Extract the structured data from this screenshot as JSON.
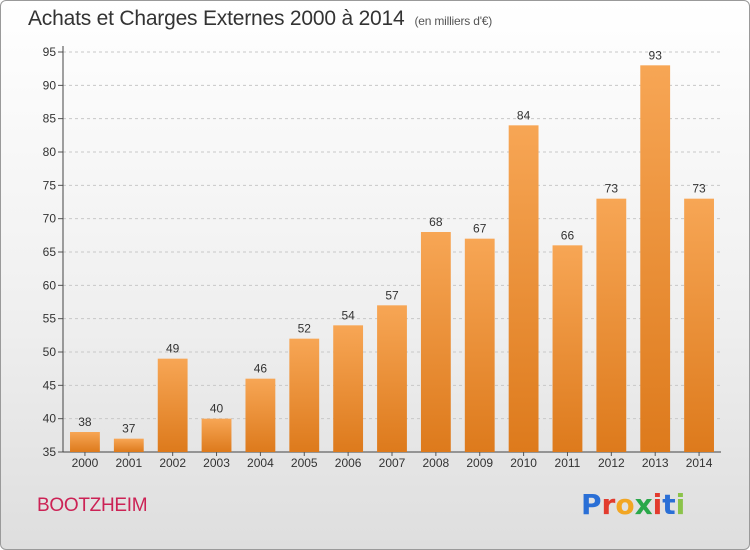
{
  "header": {
    "title": "Achats et Charges Externes 2000 à 2014",
    "subtitle": "(en milliers d'€)"
  },
  "footer": {
    "city": "BOOTZHEIM",
    "logo_text": "Proxiti"
  },
  "colors": {
    "bar_light": "#f7a655",
    "bar_dark": "#dd7a1c",
    "city": "#cc2255"
  },
  "chart_data": {
    "type": "bar",
    "title": "Achats et Charges Externes 2000 à 2014",
    "subtitle": "(en milliers d'€)",
    "categories": [
      "2000",
      "2001",
      "2002",
      "2003",
      "2004",
      "2005",
      "2006",
      "2007",
      "2008",
      "2009",
      "2010",
      "2011",
      "2012",
      "2013",
      "2014"
    ],
    "values": [
      38,
      37,
      49,
      40,
      46,
      52,
      54,
      57,
      68,
      67,
      84,
      66,
      73,
      93,
      73
    ],
    "ylim": [
      35,
      95
    ],
    "yticks": [
      35,
      40,
      45,
      50,
      55,
      60,
      65,
      70,
      75,
      80,
      85,
      90,
      95
    ],
    "grid": true,
    "data_labels": true
  }
}
